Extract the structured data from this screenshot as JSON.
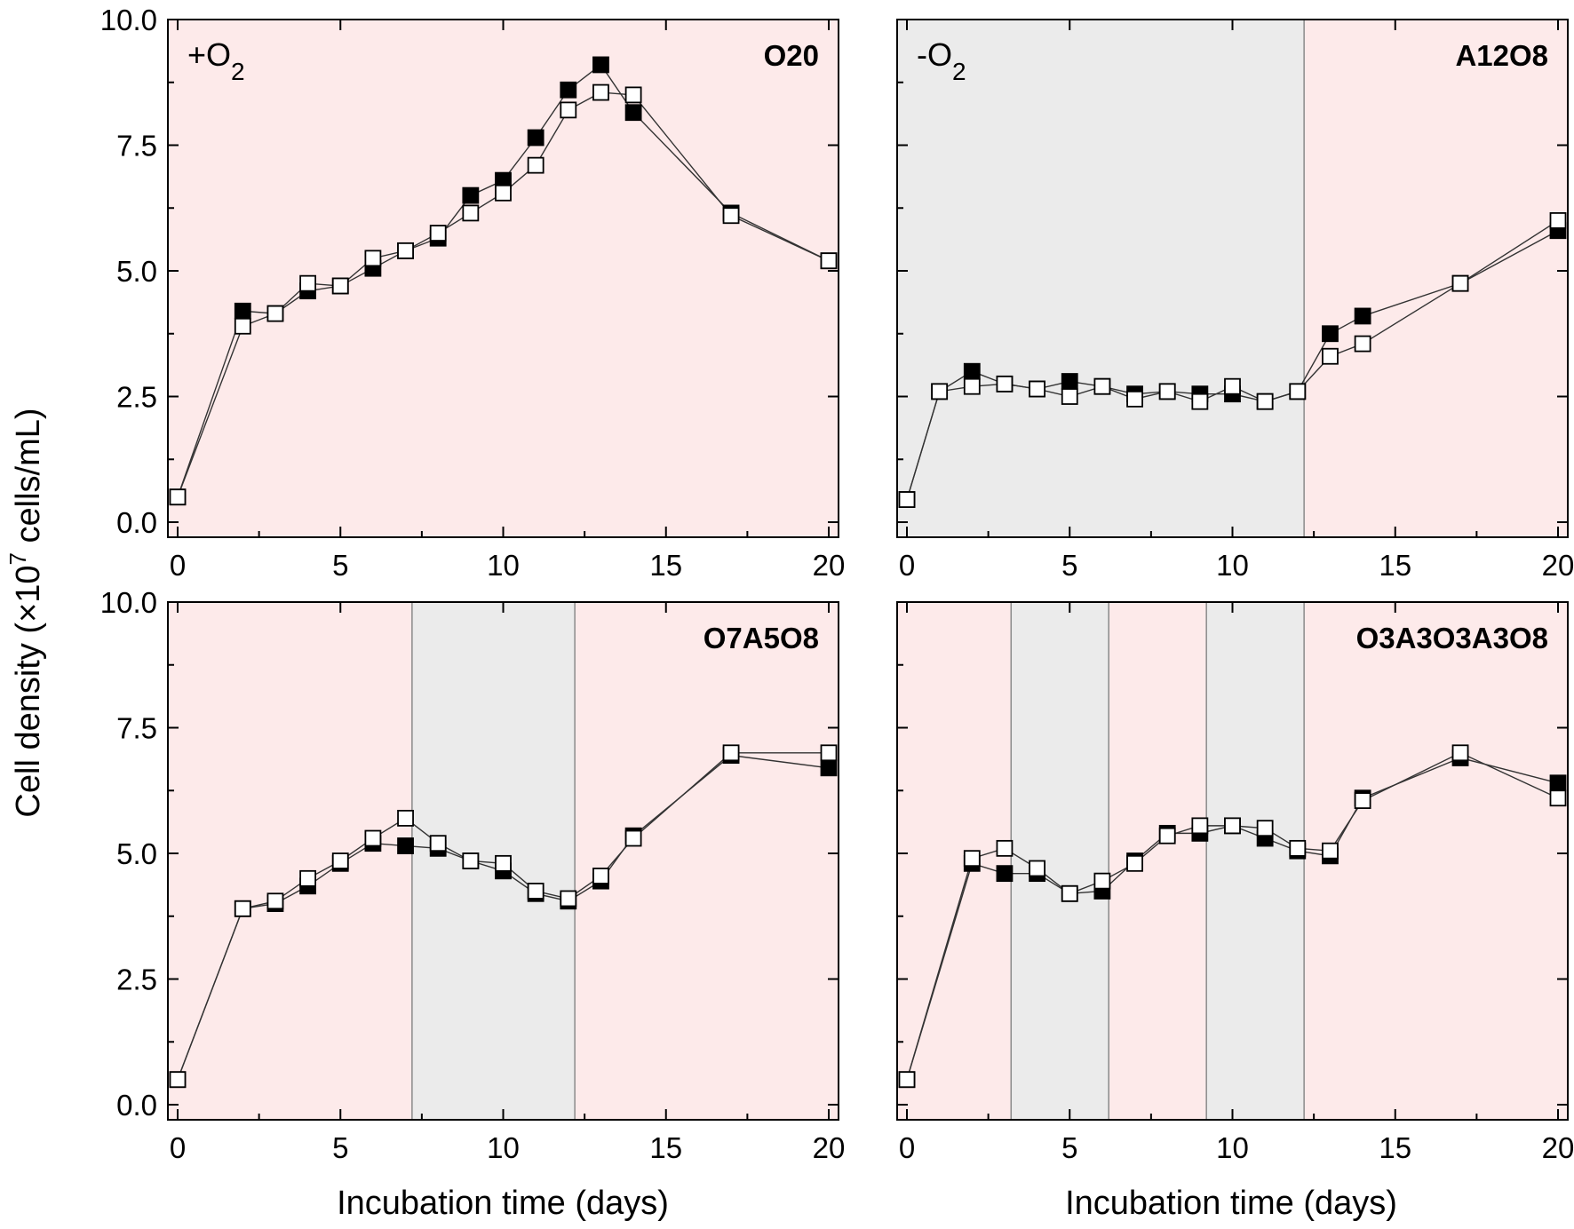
{
  "chart_data": {
    "type": "line",
    "ylabel": "Cell density (×10^7 cells/mL)",
    "ylabel_parts": {
      "prefix": "Cell density (×10",
      "exponent": "7",
      "suffix": " cells/mL)"
    },
    "xlabel": "Incubation time (days)",
    "xlim": [
      -0.3,
      20.3
    ],
    "ylim": [
      -0.3,
      10.0
    ],
    "x_ticks": [
      0,
      5,
      10,
      15,
      20
    ],
    "x_tick_labels": [
      "0",
      "5",
      "10",
      "15",
      "20"
    ],
    "y_ticks": [
      0,
      2.5,
      5,
      7.5,
      10
    ],
    "y_tick_labels": [
      "0.0",
      "2.5",
      "5.0",
      "7.5",
      "10.0"
    ],
    "colors": {
      "oxic": "#fdeaea",
      "anoxic": "#ebebeb",
      "line": "#333333",
      "edge": "#000000"
    },
    "series_names": [
      "filled squares",
      "open squares"
    ],
    "panels": [
      {
        "title": "O20",
        "condition_label": {
          "base": "+O",
          "sub": "2"
        },
        "phases": [
          {
            "from": -0.3,
            "to": 20.3,
            "type": "oxic"
          }
        ],
        "series": [
          {
            "name": "filled squares",
            "fill": "#000000",
            "x": [
              0,
              2,
              3,
              4,
              5,
              6,
              7,
              8,
              9,
              10,
              11,
              12,
              13,
              14,
              17,
              20
            ],
            "y": [
              0.5,
              4.2,
              4.15,
              4.6,
              4.7,
              5.05,
              5.4,
              5.65,
              6.5,
              6.8,
              7.65,
              8.6,
              9.1,
              8.15,
              6.15,
              5.2
            ]
          },
          {
            "name": "open squares",
            "fill": "#ffffff",
            "x": [
              0,
              2,
              3,
              4,
              5,
              6,
              7,
              8,
              9,
              10,
              11,
              12,
              13,
              14,
              17,
              20
            ],
            "y": [
              0.5,
              3.9,
              4.15,
              4.75,
              4.7,
              5.25,
              5.4,
              5.75,
              6.15,
              6.55,
              7.1,
              8.2,
              8.55,
              8.5,
              6.1,
              5.2
            ]
          }
        ]
      },
      {
        "title": "A12O8",
        "condition_label": {
          "base": "-O",
          "sub": "2"
        },
        "phases": [
          {
            "from": -0.3,
            "to": 12.2,
            "type": "anoxic"
          },
          {
            "from": 12.2,
            "to": 20.3,
            "type": "oxic"
          }
        ],
        "series": [
          {
            "name": "filled squares",
            "fill": "#000000",
            "x": [
              0,
              1,
              2,
              3,
              4,
              5,
              6,
              7,
              8,
              9,
              10,
              11,
              12,
              13,
              14,
              17,
              20
            ],
            "y": [
              0.45,
              2.6,
              3.0,
              2.75,
              2.65,
              2.8,
              2.7,
              2.55,
              2.6,
              2.55,
              2.55,
              2.4,
              2.6,
              3.75,
              4.1,
              4.75,
              5.8
            ]
          },
          {
            "name": "open squares",
            "fill": "#ffffff",
            "x": [
              0,
              1,
              2,
              3,
              4,
              5,
              6,
              7,
              8,
              9,
              10,
              11,
              12,
              13,
              14,
              17,
              20
            ],
            "y": [
              0.45,
              2.6,
              2.7,
              2.75,
              2.65,
              2.5,
              2.7,
              2.45,
              2.6,
              2.4,
              2.7,
              2.4,
              2.6,
              3.3,
              3.55,
              4.75,
              6.0
            ]
          }
        ]
      },
      {
        "title": "O7A5O8",
        "condition_label": null,
        "phases": [
          {
            "from": -0.3,
            "to": 7.2,
            "type": "oxic"
          },
          {
            "from": 7.2,
            "to": 12.2,
            "type": "anoxic"
          },
          {
            "from": 12.2,
            "to": 20.3,
            "type": "oxic"
          }
        ],
        "series": [
          {
            "name": "filled squares",
            "fill": "#000000",
            "x": [
              0,
              2,
              3,
              4,
              5,
              6,
              7,
              8,
              9,
              10,
              11,
              12,
              13,
              14,
              17,
              20
            ],
            "y": [
              0.5,
              3.9,
              4.0,
              4.35,
              4.8,
              5.2,
              5.15,
              5.1,
              4.85,
              4.65,
              4.2,
              4.05,
              4.45,
              5.35,
              6.95,
              6.7
            ]
          },
          {
            "name": "open squares",
            "fill": "#ffffff",
            "x": [
              0,
              2,
              3,
              4,
              5,
              6,
              7,
              8,
              9,
              10,
              11,
              12,
              13,
              14,
              17,
              20
            ],
            "y": [
              0.5,
              3.9,
              4.05,
              4.5,
              4.85,
              5.3,
              5.7,
              5.2,
              4.85,
              4.8,
              4.25,
              4.1,
              4.55,
              5.3,
              7.0,
              7.0
            ]
          }
        ]
      },
      {
        "title": "O3A3O3A3O8",
        "condition_label": null,
        "phases": [
          {
            "from": -0.3,
            "to": 3.2,
            "type": "oxic"
          },
          {
            "from": 3.2,
            "to": 6.2,
            "type": "anoxic"
          },
          {
            "from": 6.2,
            "to": 9.2,
            "type": "oxic"
          },
          {
            "from": 9.2,
            "to": 12.2,
            "type": "anoxic"
          },
          {
            "from": 12.2,
            "to": 20.3,
            "type": "oxic"
          }
        ],
        "series": [
          {
            "name": "filled squares",
            "fill": "#000000",
            "x": [
              0,
              2,
              3,
              4,
              5,
              6,
              7,
              8,
              9,
              10,
              11,
              12,
              13,
              14,
              17,
              20
            ],
            "y": [
              0.5,
              4.8,
              4.6,
              4.6,
              4.2,
              4.25,
              4.85,
              5.4,
              5.4,
              5.55,
              5.3,
              5.05,
              4.95,
              6.1,
              6.9,
              6.4
            ]
          },
          {
            "name": "open squares",
            "fill": "#ffffff",
            "x": [
              0,
              2,
              3,
              4,
              5,
              6,
              7,
              8,
              9,
              10,
              11,
              12,
              13,
              14,
              17,
              20
            ],
            "y": [
              0.5,
              4.9,
              5.1,
              4.7,
              4.2,
              4.45,
              4.8,
              5.35,
              5.55,
              5.55,
              5.5,
              5.1,
              5.05,
              6.05,
              7.0,
              6.1
            ]
          }
        ]
      }
    ]
  }
}
